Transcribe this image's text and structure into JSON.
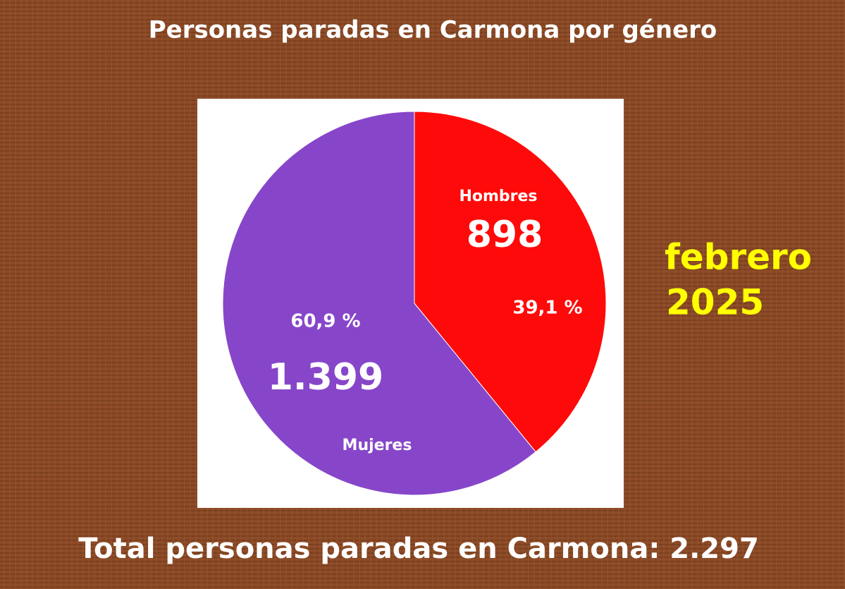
{
  "chart_data": {
    "type": "pie",
    "title": "Personas paradas en Carmona por género",
    "categories": [
      "Hombres",
      "Mujeres"
    ],
    "values": [
      898,
      1399
    ],
    "value_labels": [
      "898",
      "1.399"
    ],
    "percent_labels": [
      "39,1 %",
      "60,9 %"
    ],
    "colors": [
      "#ff0a0a",
      "#8746c9"
    ],
    "annotation": [
      "febrero",
      "2025"
    ],
    "footer": "Total personas paradas en Carmona: 2.297"
  }
}
